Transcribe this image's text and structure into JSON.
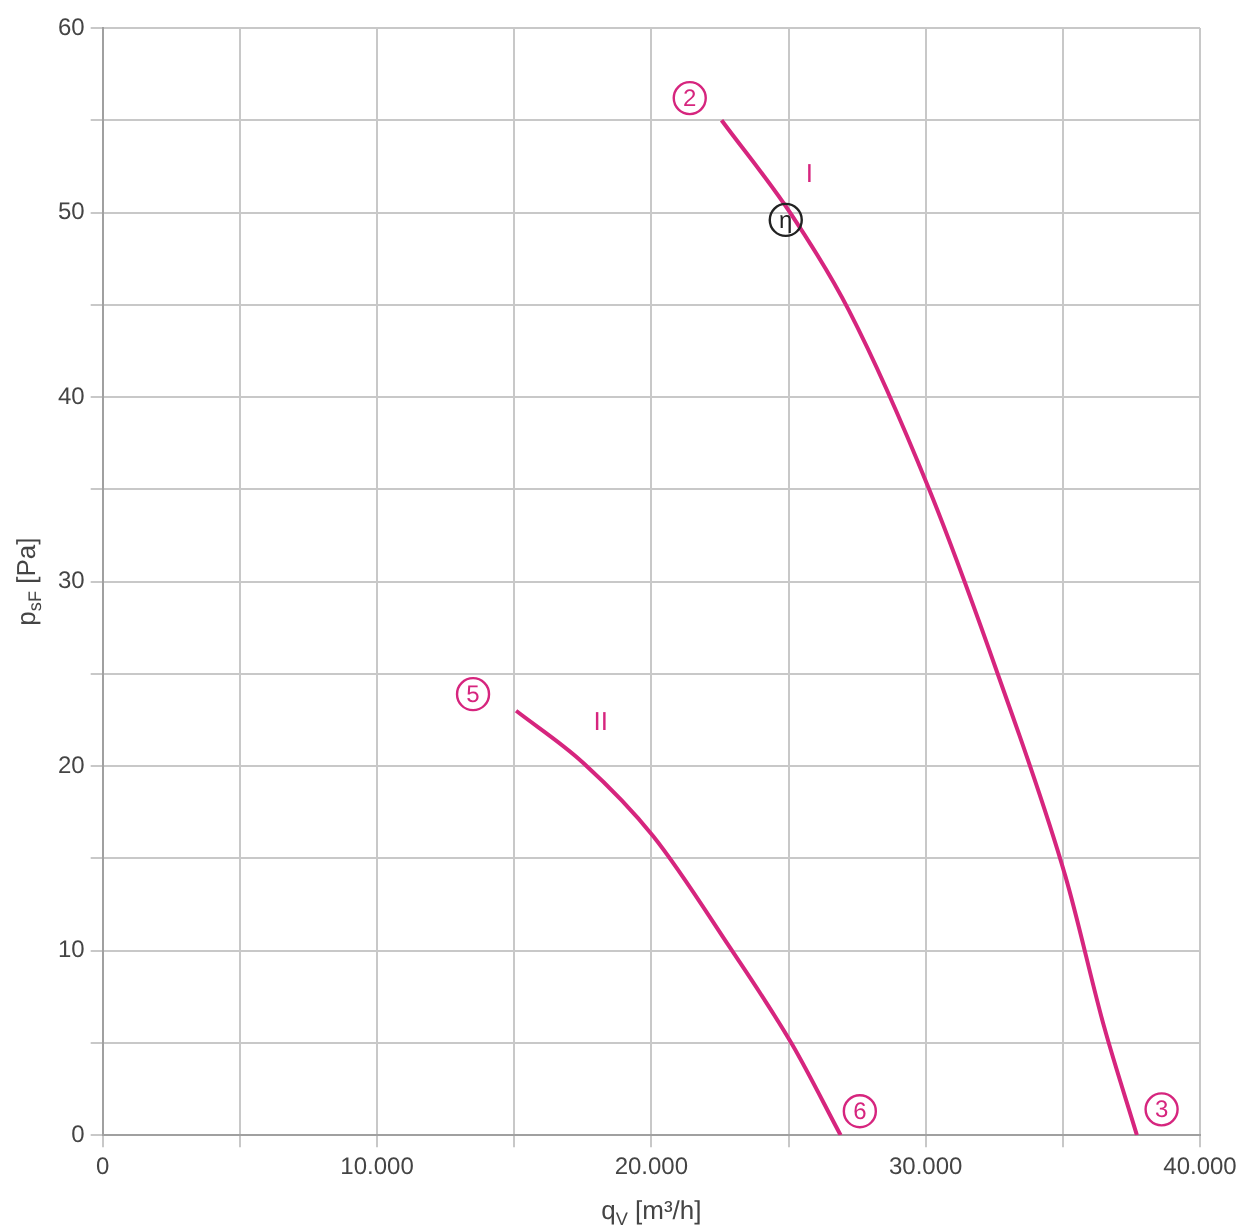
{
  "chart_data": {
    "type": "line",
    "xlabel": "q$_{V}$ [m³/h]",
    "ylabel": "p$_{sF}$ [Pa]",
    "series": [
      {
        "name": "I",
        "color": "#d6257e",
        "x": [
          22560,
          25100,
          27200,
          30100,
          32650,
          35100,
          36500,
          37700
        ],
        "values": [
          55.0,
          49.9,
          44.7,
          35.1,
          24.9,
          14.0,
          5.9,
          0
        ]
      },
      {
        "name": "II",
        "color": "#d6257e",
        "x": [
          15070,
          17500,
          20070,
          22850,
          25140,
          26900
        ],
        "values": [
          23.0,
          20.2,
          16.2,
          10.2,
          4.9,
          0
        ]
      }
    ],
    "xlim": [
      0,
      40000
    ],
    "xticks": [
      0,
      {
        "value": 5000,
        "label": null
      },
      {
        "value": 10000,
        "label": "10.000"
      },
      {
        "value": 15000,
        "label": null
      },
      {
        "value": 20000,
        "label": "20.000"
      },
      {
        "value": 25000,
        "label": null
      },
      {
        "value": 30000,
        "label": "30.000"
      },
      {
        "value": 35000,
        "label": null
      },
      {
        "value": 40000,
        "label": "40.000"
      }
    ],
    "ylim": [
      0,
      60
    ],
    "yticks": [
      0,
      {
        "value": 5,
        "label": null
      },
      10,
      {
        "value": 15,
        "label": null
      },
      20,
      {
        "value": 25,
        "label": null
      },
      30,
      {
        "value": 35,
        "label": null
      },
      40,
      {
        "value": 45,
        "label": null
      },
      50,
      {
        "value": 55,
        "label": null
      },
      60
    ],
    "annotations": [
      {
        "text": "2",
        "x": 21400,
        "y": 56.2
      },
      {
        "text": "3",
        "x": 38600,
        "y": 1.4
      },
      {
        "text": "5",
        "x": 13500,
        "y": 23.9
      },
      {
        "text": "6",
        "x": 27600,
        "y": 1.3
      },
      {
        "text": "η",
        "x": 24900,
        "y": 49.6
      }
    ],
    "grid": true,
    "legend": false,
    "marker": "none",
    "line_style": "solid"
  }
}
